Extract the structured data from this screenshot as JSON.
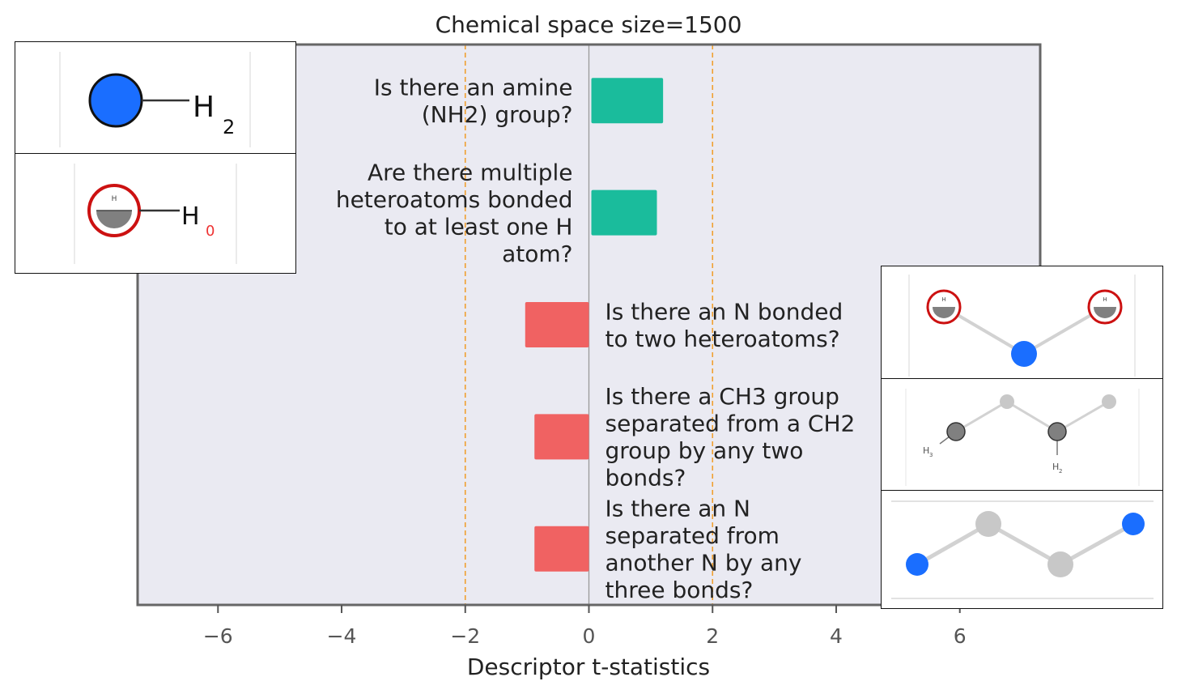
{
  "chart_data": {
    "type": "bar",
    "orientation": "horizontal",
    "title": "Chemical space size=1500",
    "xlabel": "Descriptor t-statistics",
    "ylabel": "",
    "xlim": [
      -7.3,
      7.3
    ],
    "xticks": [
      -6,
      -4,
      -2,
      0,
      2,
      4,
      6
    ],
    "xtick_labels": [
      "−6",
      "−4",
      "−2",
      "0",
      "2",
      "4",
      "6"
    ],
    "reference_lines": [
      -2,
      2
    ],
    "zero_line": 0,
    "grid": false,
    "bars": [
      {
        "label_lines": [
          "Is there an amine",
          "(NH2) group?"
        ],
        "value": 1.2,
        "color": "#1abc9c"
      },
      {
        "label_lines": [
          "Are there multiple",
          "heteroatoms bonded",
          "to at least one H",
          "atom?"
        ],
        "value": 1.1,
        "color": "#1abc9c"
      },
      {
        "label_lines": [
          "Is there an N bonded",
          "to two heteroatoms?"
        ],
        "value": -1.07,
        "color": "#f06262"
      },
      {
        "label_lines": [
          "Is there a CH3 group",
          "separated from a CH2",
          "group by any two",
          "bonds?"
        ],
        "value": -0.92,
        "color": "#f06262"
      },
      {
        "label_lines": [
          "Is there an N",
          "separated from",
          "another N by any",
          "three bonds?"
        ],
        "value": -0.92,
        "color": "#f06262"
      }
    ]
  },
  "colors": {
    "plot_background": "#eaeaf2",
    "positive": "#1abc9c",
    "negative": "#f06262",
    "reference_line": "#f0a030",
    "axes_frame": "#666666",
    "nitrogen_atom": "#1a6eff",
    "hydrogen_marker": "#cc1111",
    "carbon_light": "#c8c8c8",
    "carbon_dark": "#808080"
  },
  "insets": {
    "nh2": {
      "subscript": "2"
    },
    "h0": {
      "subscript": "0"
    },
    "ch3_ch2": {
      "sub_ch3": "3",
      "sub_ch2": "2"
    }
  }
}
